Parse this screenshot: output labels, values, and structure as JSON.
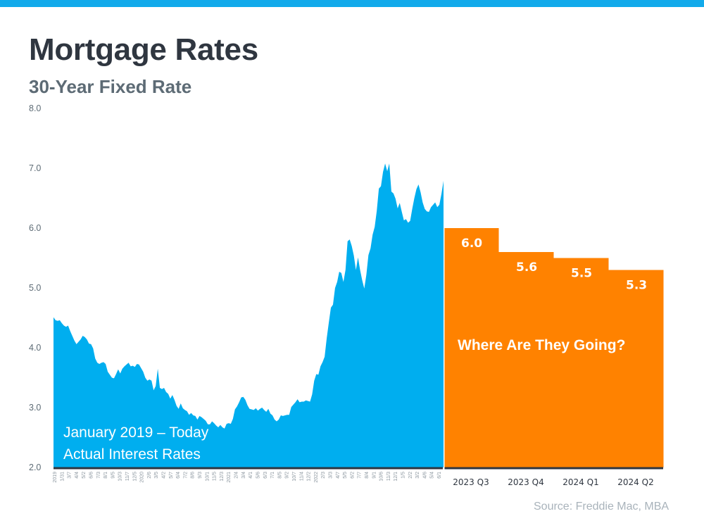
{
  "header": {
    "title": "Mortgage Rates",
    "subtitle": "30-Year Fixed Rate"
  },
  "source": "Source: Freddie Mac, MBA",
  "colors": {
    "top_bar": "#12aaeb",
    "actual": "#00aeef",
    "forecast": "#ff8200",
    "axis": "#2f3640"
  },
  "chart_data": [
    {
      "type": "area",
      "name": "actual",
      "title": "Mortgage Rates",
      "subtitle": "30-Year Fixed Rate",
      "ylabel": "",
      "xlabel": "",
      "ylim": [
        2.0,
        8.0
      ],
      "yticks": [
        "2.0",
        "3.0",
        "4.0",
        "5.0",
        "6.0",
        "7.0",
        "8.0"
      ],
      "grid": false,
      "annotation": [
        "January 2019 – Today",
        "Actual Interest Rates"
      ],
      "x_tick_labels": [
        "2019",
        "1/31",
        "3/7",
        "4/4",
        "5/2",
        "6/6",
        "7/3",
        "8/1",
        "9/5",
        "10/3",
        "11/7",
        "12/5",
        "2020",
        "2/6",
        "3/5",
        "4/2",
        "5/7",
        "6/4",
        "7/2",
        "8/6",
        "9/3",
        "10/1",
        "11/5",
        "12/3",
        "2021",
        "2/4",
        "3/4",
        "4/1",
        "5/6",
        "6/3",
        "7/1",
        "8/5",
        "9/2",
        "10/7",
        "11/4",
        "12/2",
        "2022",
        "2/3",
        "3/3",
        "4/7",
        "5/5",
        "6/2",
        "7/7",
        "8/4",
        "9/1",
        "10/6",
        "11/3",
        "12/1",
        "1/5",
        "2/2",
        "3/2",
        "4/6",
        "5/4",
        "6/1"
      ],
      "values": [
        4.51,
        4.46,
        4.45,
        4.46,
        4.41,
        4.37,
        4.35,
        4.37,
        4.28,
        4.2,
        4.12,
        4.06,
        4.1,
        4.14,
        4.2,
        4.18,
        4.14,
        4.07,
        4.06,
        3.99,
        3.82,
        3.75,
        3.73,
        3.75,
        3.76,
        3.73,
        3.6,
        3.55,
        3.5,
        3.49,
        3.56,
        3.64,
        3.57,
        3.65,
        3.69,
        3.72,
        3.75,
        3.69,
        3.7,
        3.68,
        3.73,
        3.72,
        3.66,
        3.6,
        3.5,
        3.45,
        3.47,
        3.45,
        3.29,
        3.36,
        3.65,
        3.33,
        3.31,
        3.33,
        3.26,
        3.23,
        3.15,
        3.21,
        3.13,
        3.03,
        2.98,
        3.07,
        2.99,
        2.96,
        2.94,
        2.88,
        2.91,
        2.87,
        2.86,
        2.8,
        2.86,
        2.84,
        2.81,
        2.78,
        2.72,
        2.72,
        2.77,
        2.74,
        2.7,
        2.67,
        2.71,
        2.67,
        2.65,
        2.73,
        2.74,
        2.73,
        2.81,
        2.97,
        3.02,
        3.09,
        3.17,
        3.18,
        3.13,
        3.04,
        2.98,
        2.97,
        2.96,
        2.99,
        2.95,
        2.98,
        3.0,
        2.96,
        2.93,
        2.98,
        2.9,
        2.87,
        2.8,
        2.77,
        2.8,
        2.87,
        2.86,
        2.87,
        2.88,
        2.88,
        3.01,
        3.05,
        3.09,
        3.14,
        3.09,
        3.1,
        3.1,
        3.12,
        3.11,
        3.1,
        3.22,
        3.45,
        3.56,
        3.55,
        3.69,
        3.76,
        3.85,
        4.16,
        4.42,
        4.67,
        4.72,
        5.0,
        5.1,
        5.27,
        5.25,
        5.1,
        5.3,
        5.78,
        5.81,
        5.7,
        5.54,
        5.3,
        5.51,
        5.3,
        5.13,
        4.99,
        5.22,
        5.55,
        5.66,
        5.89,
        6.02,
        6.29,
        6.66,
        6.7,
        6.94,
        7.08,
        6.95,
        7.08,
        6.61,
        6.58,
        6.49,
        6.33,
        6.42,
        6.27,
        6.13,
        6.15,
        6.09,
        6.12,
        6.32,
        6.5,
        6.65,
        6.73,
        6.6,
        6.43,
        6.32,
        6.28,
        6.27,
        6.35,
        6.39,
        6.43,
        6.35,
        6.39,
        6.57,
        6.79
      ]
    },
    {
      "type": "bar",
      "name": "forecast",
      "annotation": "Where Are They Going?",
      "categories": [
        "2023 Q3",
        "2023 Q4",
        "2024 Q1",
        "2024 Q2"
      ],
      "values": [
        6.0,
        5.6,
        5.5,
        5.3
      ],
      "labels": [
        "6.0",
        "5.6",
        "5.5",
        "5.3"
      ],
      "ylim": [
        2.0,
        8.0
      ]
    }
  ]
}
